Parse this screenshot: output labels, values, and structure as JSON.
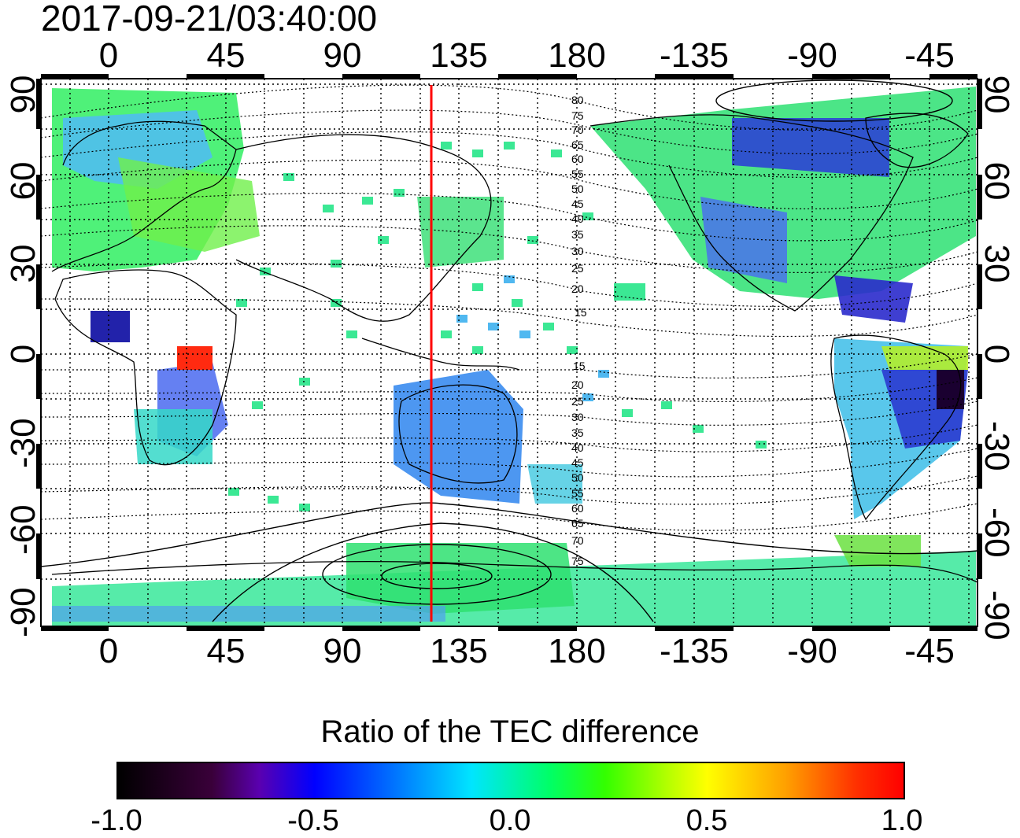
{
  "timestamp": "2017-09-21/03:40:00",
  "x_ticks": [
    "0",
    "45",
    "90",
    "135",
    "180",
    "-135",
    "-90",
    "-45"
  ],
  "y_ticks": [
    "90",
    "60",
    "30",
    "0",
    "-30",
    "-60",
    "-90"
  ],
  "magnetic_lat_labels_north": [
    "80",
    "75",
    "70",
    "65",
    "60",
    "55",
    "50",
    "45",
    "40",
    "35",
    "30",
    "25",
    "20",
    "15"
  ],
  "magnetic_lat_labels_south": [
    "15",
    "20",
    "25",
    "30",
    "35",
    "40",
    "45",
    "50",
    "55",
    "60",
    "65",
    "70",
    "75"
  ],
  "meridian_longitude": 125,
  "colorbar": {
    "title": "Ratio of the TEC difference",
    "ticks": [
      "-1.0",
      "-0.5",
      "0.0",
      "0.5",
      "1.0"
    ],
    "range": [
      -1.0,
      1.0
    ]
  },
  "colors": {
    "meridian": "#ff0000",
    "positive": "#ff0000",
    "zero": "#00ff00",
    "negative": "#0000ff",
    "min": "#000000",
    "max": "#ff0000"
  }
}
